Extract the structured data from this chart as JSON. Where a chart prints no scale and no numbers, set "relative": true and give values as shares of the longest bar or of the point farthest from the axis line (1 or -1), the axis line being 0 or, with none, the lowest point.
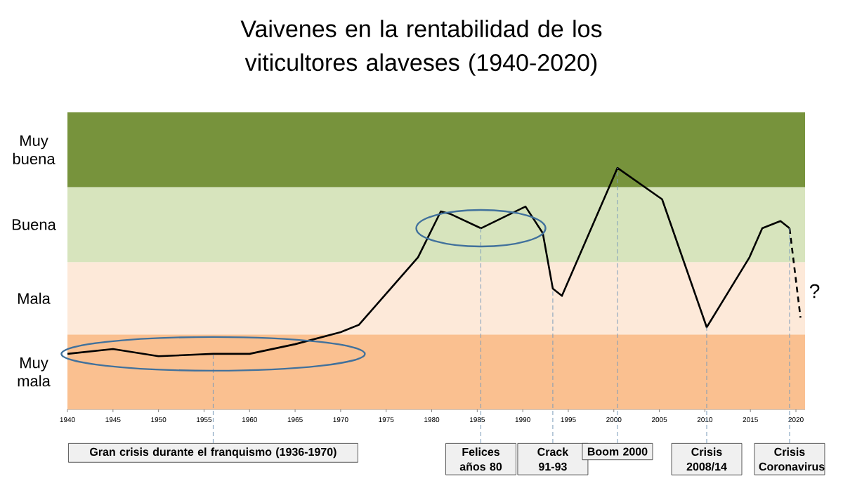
{
  "chart_data": {
    "type": "line",
    "title": "Vaivenes en la rentabilidad de los viticultores alaveses (1940-2020)",
    "xlim": [
      1940,
      2021
    ],
    "xticks": [
      1940,
      1945,
      1950,
      1955,
      1960,
      1965,
      1970,
      1975,
      1980,
      1985,
      1990,
      1995,
      2000,
      2005,
      2010,
      2015,
      2020
    ],
    "relative": true,
    "tick_labels": "x",
    "marker": "none",
    "series": [
      {
        "color": "#000000",
        "line_style": "solid",
        "x": [
          1940,
          1945,
          1950,
          1956,
          1960,
          1965,
          1970,
          1972,
          1978.5,
          1981,
          1982,
          1985.4,
          1990.3,
          1992.2,
          1993.3,
          1994.3,
          2000.4,
          2005.3,
          2010.2,
          2014.9,
          2016.3,
          2018.3,
          2019.3
        ],
        "values": [
          0.23,
          0.25,
          0.22,
          0.23,
          0.23,
          0.27,
          0.32,
          0.35,
          0.63,
          0.82,
          0.81,
          0.75,
          0.84,
          0.73,
          0.5,
          0.47,
          1,
          0.87,
          0.34,
          0.63,
          0.75,
          0.78,
          0.75
        ]
      },
      {
        "color": "#000000",
        "line_style": "dashed",
        "x": [
          2019.3,
          2020.5
        ],
        "values": [
          0.75,
          0.38
        ]
      }
    ],
    "bands": [
      {
        "axis": "y",
        "from": 0,
        "to": 0.31,
        "label": "Muy mala",
        "color": "#fac090"
      },
      {
        "axis": "y",
        "from": 0.31,
        "to": 0.61,
        "label": "Mala",
        "color": "#fde9d9"
      },
      {
        "axis": "y",
        "from": 0.61,
        "to": 0.92,
        "label": "Buena",
        "color": "#d7e4bd"
      },
      {
        "axis": "y",
        "from": 0.92,
        "to": 1.23,
        "label": "Muy buena",
        "color": "#77933c"
      }
    ],
    "annotations": [
      {
        "text": "Gran crisis durante el franquismo (1936-1970)",
        "x": 1956,
        "y": 0.23
      },
      {
        "text": "Felices años 80",
        "x": 1985.4,
        "y": 0.75
      },
      {
        "text": "Crack 91-93",
        "x": 1993.3,
        "y": 0.5
      },
      {
        "text": "Boom 2000",
        "x": 2000.4,
        "y": 1
      },
      {
        "text": "Crisis 2008/14",
        "x": 2010.2,
        "y": 0.34
      },
      {
        "text": "Crisis Coronavirus",
        "x": 2019.3,
        "y": 0.75
      },
      {
        "text": "?",
        "x": 2020.9,
        "y": 0.49
      }
    ]
  }
}
